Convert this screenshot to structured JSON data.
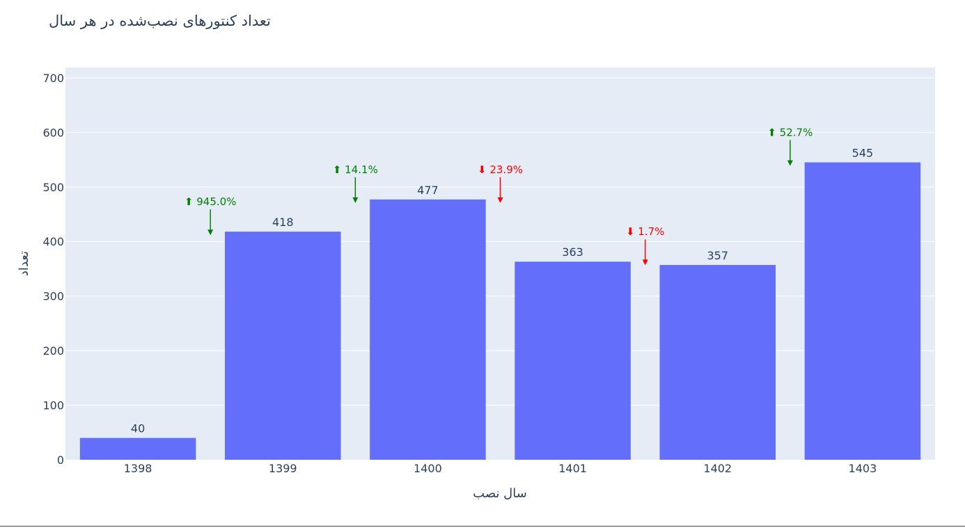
{
  "chart_data": {
    "type": "bar",
    "title": "تعداد کنتورهای نصب‌شده در هر سال",
    "xlabel": "سال نصب",
    "ylabel": "تعداد",
    "categories": [
      "1398",
      "1399",
      "1400",
      "1401",
      "1402",
      "1403"
    ],
    "values": [
      40,
      418,
      477,
      363,
      357,
      545
    ],
    "data_labels": [
      "40",
      "418",
      "477",
      "363",
      "357",
      "545"
    ],
    "ylim": [
      0,
      717
    ],
    "yticks": [
      0,
      100,
      200,
      300,
      400,
      500,
      600,
      700
    ],
    "grid": true,
    "bar_color": "#636efa",
    "plot_bg": "#e5ecf6",
    "annotations": [
      {
        "text": "⬆ 945.0%",
        "direction": "up",
        "color": "#008000"
      },
      {
        "text": "⬆ 14.1%",
        "direction": "up",
        "color": "#008000"
      },
      {
        "text": "⬇ 23.9%",
        "direction": "down",
        "color": "#ff0000"
      },
      {
        "text": "⬇ 1.7%",
        "direction": "down",
        "color": "#ff0000"
      },
      {
        "text": "⬆ 52.7%",
        "direction": "up",
        "color": "#008000"
      }
    ]
  }
}
